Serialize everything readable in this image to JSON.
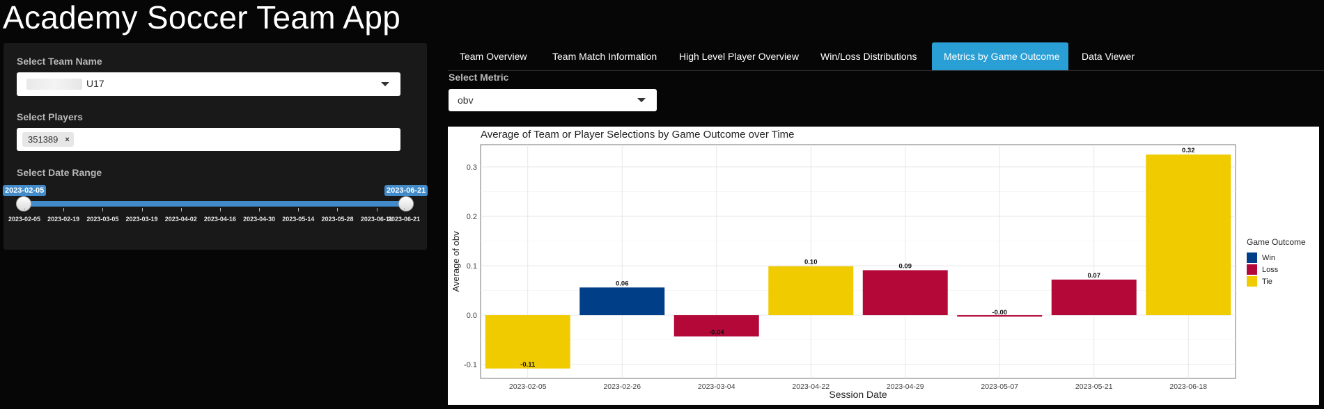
{
  "app": {
    "title": "Academy Soccer Team App"
  },
  "sidebar": {
    "team": {
      "label": "Select Team Name",
      "value": "U17"
    },
    "players": {
      "label": "Select Players",
      "chips": [
        "351389"
      ],
      "remove_glyph": "×"
    },
    "date_range": {
      "label": "Select Date Range",
      "from": "2023-02-05",
      "to": "2023-06-21",
      "ticks": [
        "2023-02-05",
        "2023-02-19",
        "2023-03-05",
        "2023-03-19",
        "2023-04-02",
        "2023-04-16",
        "2023-04-30",
        "2023-05-14",
        "2023-05-28",
        "2023-06-11",
        "2023-06-21"
      ]
    }
  },
  "tabs": [
    {
      "label": "Team Overview",
      "active": false
    },
    {
      "label": "Team Match Information",
      "active": false
    },
    {
      "label": "High Level Player Overview",
      "active": false
    },
    {
      "label": "Win/Loss Distributions",
      "active": false
    },
    {
      "label": "Metrics by Game Outcome",
      "active": true
    },
    {
      "label": "Data Viewer",
      "active": false
    }
  ],
  "metric": {
    "label": "Select Metric",
    "value": "obv"
  },
  "chart_data": {
    "type": "bar",
    "title": "Average of Team or Player Selections by Game Outcome over Time",
    "xlabel": "Session Date",
    "ylabel": "Average of obv",
    "categories": [
      "2023-02-05",
      "2023-02-26",
      "2023-03-04",
      "2023-04-22",
      "2023-04-29",
      "2023-05-07",
      "2023-05-21",
      "2023-06-18"
    ],
    "values": [
      -0.108,
      0.056,
      -0.043,
      0.099,
      0.091,
      -0.003,
      0.072,
      0.325
    ],
    "data_labels": [
      "-0.11",
      "0.06",
      "-0.04",
      "0.10",
      "0.09",
      "-0.00",
      "0.07",
      "0.32"
    ],
    "outcomes": [
      "Tie",
      "Win",
      "Loss",
      "Tie",
      "Loss",
      "Loss",
      "Loss",
      "Tie"
    ],
    "legend": {
      "title": "Game Outcome",
      "position": "right",
      "entries": [
        {
          "name": "Win",
          "color": "#003f87"
        },
        {
          "name": "Loss",
          "color": "#b30838"
        },
        {
          "name": "Tie",
          "color": "#f0cb00"
        }
      ]
    },
    "yticks": [
      -0.1,
      0.0,
      0.1,
      0.2,
      0.3
    ],
    "ytick_labels": [
      "-0.1",
      "0.0",
      "0.1",
      "0.2",
      "0.3"
    ],
    "ylim": [
      -0.128,
      0.345
    ],
    "grid": true
  }
}
